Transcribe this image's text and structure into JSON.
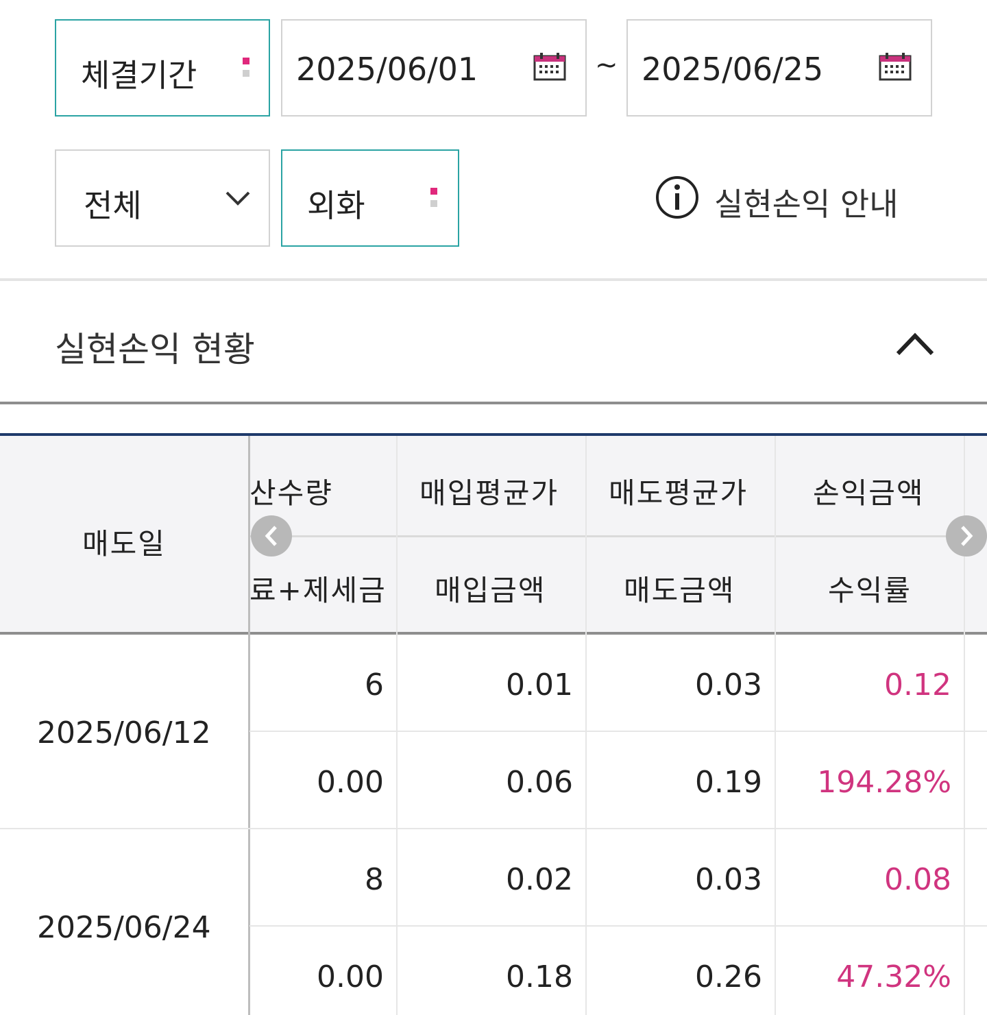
{
  "filter": {
    "period_label": "체결기간",
    "start_date": "2025/06/01",
    "tilde": "~",
    "end_date": "2025/06/25",
    "type_select": "전체",
    "currency_label": "외화",
    "info_link": "실현손익 안내"
  },
  "section": {
    "title": "실현손익 현황"
  },
  "table": {
    "fixed_header": "매도일",
    "headers_top": [
      "산수량",
      "매입평균가",
      "매도평균가",
      "손익금액"
    ],
    "headers_bottom": [
      "료+제세금",
      "매입금액",
      "매도금액",
      "수익률"
    ],
    "rows": [
      {
        "date": "2025/06/12",
        "top": [
          "6",
          "0.01",
          "0.03",
          "0.12"
        ],
        "bottom": [
          "0.00",
          "0.06",
          "0.19",
          "194.28%"
        ]
      },
      {
        "date": "2025/06/24",
        "top": [
          "8",
          "0.02",
          "0.03",
          "0.08"
        ],
        "bottom": [
          "0.00",
          "0.18",
          "0.26",
          "47.32%"
        ]
      }
    ]
  },
  "colors": {
    "accent_teal": "#2aa3a3",
    "required_pink": "#e0287c",
    "profit_pink": "#d0347f",
    "table_top_navy": "#1f3a6b"
  },
  "icons": [
    "calendar-icon",
    "chevron-down-icon",
    "info-icon",
    "chevron-up-icon",
    "scroll-left-icon",
    "scroll-right-icon"
  ]
}
